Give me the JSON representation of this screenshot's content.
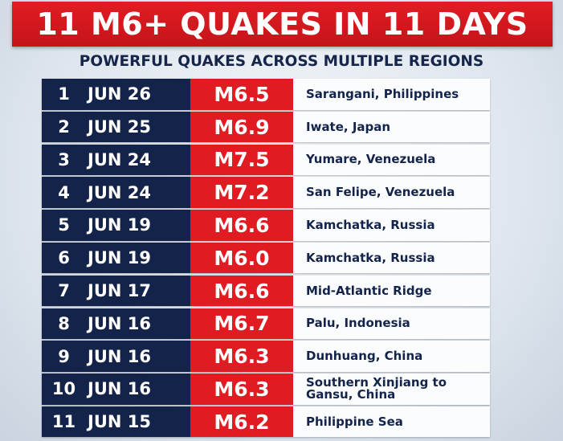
{
  "header": {
    "title": "11 M6+ QUAKES IN 11 DAYS",
    "subtitle": "POWERFUL QUAKES ACROSS MULTIPLE REGIONS"
  },
  "table": {
    "rows": [
      [
        "1",
        "JUN 26",
        "M6.5",
        "Sarangani, Philippines"
      ],
      [
        "2",
        "JUN 25",
        "M6.9",
        "Iwate, Japan"
      ],
      [
        "3",
        "JUN 24",
        "M7.5",
        "Yumare, Venezuela"
      ],
      [
        "4",
        "JUN 24",
        "M7.2",
        "San Felipe, Venezuela"
      ],
      [
        "5",
        "JUN 19",
        "M6.6",
        "Kamchatka, Russia"
      ],
      [
        "6",
        "JUN 19",
        "M6.0",
        "Kamchatka, Russia"
      ],
      [
        "7",
        "JUN 17",
        "M6.6",
        "Mid-Atlantic Ridge"
      ],
      [
        "8",
        "JUN 16",
        "M6.7",
        "Palu, Indonesia"
      ],
      [
        "9",
        "JUN 16",
        "M6.3",
        "Dunhuang, China"
      ],
      [
        "10",
        "JUN 16",
        "M6.3",
        "Southern Xinjiang to Gansu, China"
      ],
      [
        "11",
        "JUN 15",
        "M6.2",
        "Philippine Sea"
      ]
    ]
  }
}
